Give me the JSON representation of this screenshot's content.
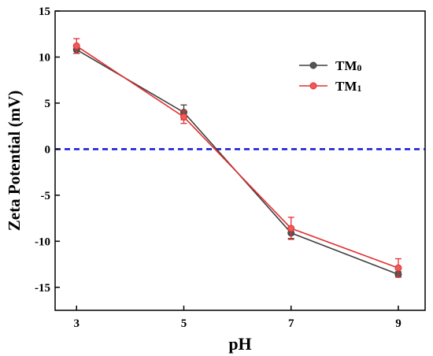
{
  "chart_data": {
    "type": "line",
    "xlabel": "pH",
    "ylabel": "Zeta Potential (mV)",
    "x": [
      3,
      5,
      7,
      9
    ],
    "xlim": [
      2.6,
      9.5
    ],
    "ylim": [
      -17.5,
      15
    ],
    "xticks": [
      3,
      5,
      7,
      9
    ],
    "yticks": [
      15,
      10,
      5,
      0,
      -5,
      -10,
      -15
    ],
    "grid": false,
    "legend_position": "top-right",
    "reference_line": {
      "y": 0,
      "style": "dashed",
      "color": "#1515d6"
    },
    "series": [
      {
        "name": "TM",
        "subscript": "0",
        "color": "#404040",
        "marker_fill": "#555555",
        "values": [
          10.8,
          4.0,
          -9.1,
          -13.6
        ],
        "errors": [
          0.4,
          0.8,
          0.6,
          0.3
        ]
      },
      {
        "name": "TM",
        "subscript": "1",
        "color": "#e03030",
        "marker_fill": "#f05a5a",
        "values": [
          11.2,
          3.5,
          -8.6,
          -12.9
        ],
        "errors": [
          0.8,
          0.7,
          1.2,
          1.0
        ]
      }
    ]
  }
}
